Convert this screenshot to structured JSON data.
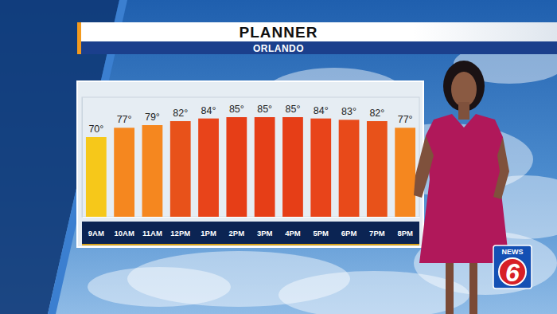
{
  "chart_data": {
    "type": "bar",
    "title": "PLANNER",
    "subtitle": "ORLANDO",
    "categories": [
      "9AM",
      "10AM",
      "11AM",
      "12PM",
      "1PM",
      "2PM",
      "3PM",
      "4PM",
      "5PM",
      "6PM",
      "7PM",
      "8PM"
    ],
    "values": [
      70,
      77,
      79,
      82,
      84,
      85,
      85,
      85,
      84,
      83,
      82,
      77
    ],
    "value_labels": [
      "70°",
      "77°",
      "79°",
      "82°",
      "84°",
      "85°",
      "85°",
      "85°",
      "84°",
      "83°",
      "82°",
      "77°"
    ],
    "colors": [
      "#f6c81a",
      "#f5871f",
      "#f5871f",
      "#e8521a",
      "#e8441a",
      "#e63e17",
      "#e63e17",
      "#e63e17",
      "#e8441a",
      "#e84a1a",
      "#e8521a",
      "#f5871f"
    ],
    "ylim": [
      10,
      100
    ],
    "grid": false,
    "data_labels": true,
    "tick_labels": "x"
  },
  "logo": {
    "text": "NEWS",
    "channel": "6"
  }
}
